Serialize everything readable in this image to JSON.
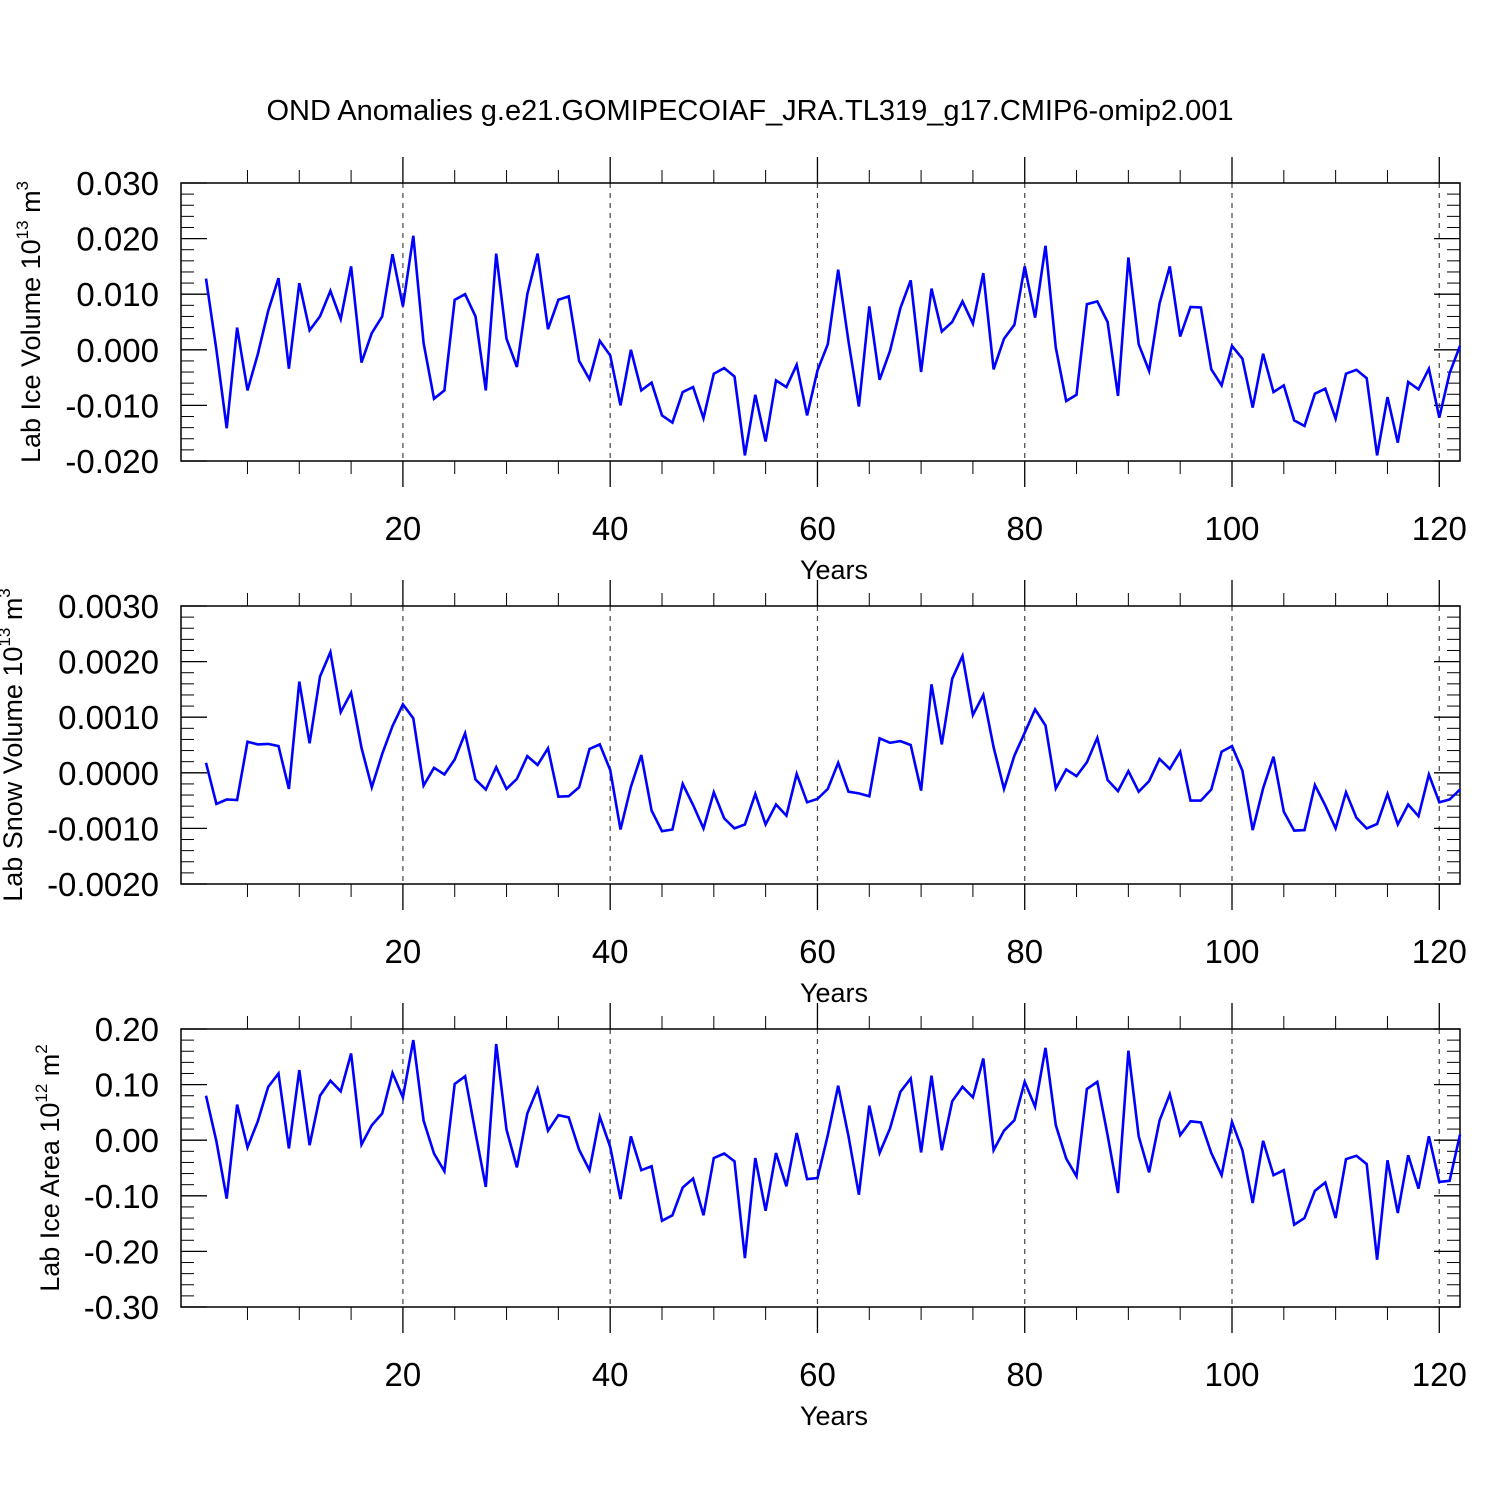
{
  "title": "OND Anomalies g.e21.GOMIPECOIAF_JRA.TL319_g17.CMIP6-omip2.001",
  "colors": {
    "line": "#0000ff",
    "frame": "#000000",
    "grid": "#444444"
  },
  "chart_data": [
    {
      "type": "line",
      "name": "ice-volume",
      "ylabel_main": "Lab Ice Volume 10",
      "ylabel_exp": "13",
      "ylabel_unit": " m",
      "ylabel_unit_exp": "3",
      "xlabel": "Years",
      "xlim": [
        1,
        122
      ],
      "ylim": [
        -0.02,
        0.03
      ],
      "xticks": [
        20,
        40,
        60,
        80,
        100,
        120
      ],
      "xtick_labels": [
        "20",
        "40",
        "60",
        "80",
        "100",
        "120"
      ],
      "yticks": [
        -0.02,
        -0.01,
        0.0,
        0.01,
        0.02,
        0.03
      ],
      "ytick_labels": [
        "-0.020",
        "-0.010",
        "0.000",
        "0.010",
        "0.020",
        "0.030"
      ],
      "grid_x": [
        20,
        40,
        60,
        80,
        100,
        120
      ],
      "values": [
        0.0128,
        0.0,
        -0.0141,
        0.004,
        -0.0073,
        -0.0008,
        0.007,
        0.0129,
        -0.0034,
        0.012,
        0.0035,
        0.006,
        0.0106,
        0.0055,
        0.015,
        -0.0023,
        0.003,
        0.006,
        0.0172,
        0.0078,
        0.0205,
        0.0012,
        -0.0088,
        -0.0073,
        0.009,
        0.01,
        0.006,
        -0.0073,
        0.0173,
        0.002,
        -0.0031,
        0.01,
        0.0173,
        0.0037,
        0.009,
        0.0096,
        -0.002,
        -0.0053,
        0.0016,
        -0.001,
        -0.01,
        0.0,
        -0.0073,
        -0.0059,
        -0.0118,
        -0.0131,
        -0.0076,
        -0.0067,
        -0.0123,
        -0.0043,
        -0.0033,
        -0.0048,
        -0.019,
        -0.0081,
        -0.0165,
        -0.0055,
        -0.0067,
        -0.0027,
        -0.0118,
        -0.0037,
        0.001,
        0.0144,
        0.0015,
        -0.0102,
        0.0078,
        -0.0054,
        -0.0002,
        0.0075,
        0.0125,
        -0.004,
        0.011,
        0.0033,
        0.005,
        0.0087,
        0.0047,
        0.0138,
        -0.0035,
        0.002,
        0.0045,
        0.015,
        0.0058,
        0.0187,
        0.0004,
        -0.0092,
        -0.0081,
        0.0082,
        0.0087,
        0.005,
        -0.0083,
        0.0166,
        0.001,
        -0.0038,
        0.0083,
        0.015,
        0.0024,
        0.0077,
        0.0076,
        -0.0035,
        -0.0064,
        0.0007,
        -0.0016,
        -0.0104,
        -0.0007,
        -0.0076,
        -0.0064,
        -0.0127,
        -0.0137,
        -0.0079,
        -0.007,
        -0.0124,
        -0.0043,
        -0.0036,
        -0.0051,
        -0.019,
        -0.0085,
        -0.0167,
        -0.0058,
        -0.0071,
        -0.0034,
        -0.0122,
        -0.0042,
        0.0007
      ]
    },
    {
      "type": "line",
      "name": "snow-volume",
      "ylabel_main": "Lab Snow Volume 10",
      "ylabel_exp": "13",
      "ylabel_unit": " m",
      "ylabel_unit_exp": "3",
      "xlabel": "Years",
      "xlim": [
        1,
        122
      ],
      "ylim": [
        -0.002,
        0.003
      ],
      "xticks": [
        20,
        40,
        60,
        80,
        100,
        120
      ],
      "xtick_labels": [
        "20",
        "40",
        "60",
        "80",
        "100",
        "120"
      ],
      "yticks": [
        -0.002,
        -0.001,
        0.0,
        0.001,
        0.002,
        0.003
      ],
      "ytick_labels": [
        "-0.0020",
        "-0.0010",
        "0.0000",
        "0.0010",
        "0.0020",
        "0.0030"
      ],
      "grid_x": [
        20,
        40,
        60,
        80,
        100,
        120
      ],
      "values": [
        0.00018,
        -0.00056,
        -0.00048,
        -0.00049,
        0.00056,
        0.00051,
        0.00052,
        0.00048,
        -0.00029,
        0.00164,
        0.00053,
        0.00173,
        0.00217,
        0.00109,
        0.00144,
        0.00045,
        -0.00026,
        0.00034,
        0.00084,
        0.00123,
        0.00098,
        -0.00023,
        9e-05,
        -3e-05,
        0.00024,
        0.00071,
        -0.00012,
        -0.0003,
        0.0001,
        -0.00029,
        -0.00011,
        0.0003,
        0.00014,
        0.00044,
        -0.00043,
        -0.00042,
        -0.00026,
        0.00043,
        0.00051,
        5e-05,
        -0.00102,
        -0.00025,
        0.00032,
        -0.00068,
        -0.00105,
        -0.00102,
        -0.0002,
        -0.00058,
        -0.001,
        -0.00035,
        -0.00082,
        -0.001,
        -0.00093,
        -0.00038,
        -0.00093,
        -0.00057,
        -0.00077,
        -2e-05,
        -0.00053,
        -0.00047,
        -0.00029,
        0.00018,
        -0.00034,
        -0.00037,
        -0.00042,
        0.00062,
        0.00054,
        0.00057,
        0.0005,
        -0.00032,
        0.00159,
        0.00051,
        0.00169,
        0.0021,
        0.00104,
        0.0014,
        0.00046,
        -0.00029,
        0.00031,
        0.00072,
        0.00114,
        0.00085,
        -0.00028,
        6e-05,
        -6e-05,
        0.00019,
        0.00063,
        -0.00013,
        -0.00033,
        3e-05,
        -0.00034,
        -0.00015,
        0.00025,
        7e-05,
        0.00038,
        -0.0005,
        -0.0005,
        -0.0003,
        0.00038,
        0.00048,
        4e-05,
        -0.00103,
        -0.00028,
        0.00029,
        -0.0007,
        -0.00104,
        -0.00103,
        -0.00022,
        -0.00059,
        -0.001,
        -0.00035,
        -0.00081,
        -0.001,
        -0.00092,
        -0.00038,
        -0.00093,
        -0.00057,
        -0.00078,
        -3e-05,
        -0.00053,
        -0.00048,
        -0.0003
      ]
    },
    {
      "type": "line",
      "name": "ice-area",
      "ylabel_main": "Lab Ice Area 10",
      "ylabel_exp": "12",
      "ylabel_unit": " m",
      "ylabel_unit_exp": "2",
      "xlabel": "Years",
      "xlim": [
        1,
        122
      ],
      "ylim": [
        -0.3,
        0.2
      ],
      "xticks": [
        20,
        40,
        60,
        80,
        100,
        120
      ],
      "xtick_labels": [
        "20",
        "40",
        "60",
        "80",
        "100",
        "120"
      ],
      "yticks": [
        -0.3,
        -0.2,
        -0.1,
        0.0,
        0.1,
        0.2
      ],
      "ytick_labels": [
        "-0.30",
        "-0.20",
        "-0.10",
        "0.00",
        "0.10",
        "0.20"
      ],
      "grid_x": [
        20,
        40,
        60,
        80,
        100,
        120
      ],
      "values": [
        0.08,
        -0.002,
        -0.105,
        0.064,
        -0.013,
        0.034,
        0.096,
        0.12,
        -0.015,
        0.126,
        -0.009,
        0.08,
        0.107,
        0.088,
        0.156,
        -0.008,
        0.027,
        0.048,
        0.121,
        0.077,
        0.18,
        0.035,
        -0.024,
        -0.056,
        0.101,
        0.115,
        0.013,
        -0.084,
        0.173,
        0.019,
        -0.049,
        0.048,
        0.093,
        0.017,
        0.045,
        0.041,
        -0.017,
        -0.054,
        0.042,
        -0.012,
        -0.106,
        0.007,
        -0.054,
        -0.047,
        -0.145,
        -0.135,
        -0.085,
        -0.069,
        -0.135,
        -0.032,
        -0.024,
        -0.038,
        -0.212,
        -0.032,
        -0.127,
        -0.023,
        -0.083,
        0.013,
        -0.07,
        -0.068,
        0.009,
        0.098,
        0.007,
        -0.098,
        0.062,
        -0.023,
        0.021,
        0.087,
        0.111,
        -0.022,
        0.116,
        -0.018,
        0.07,
        0.096,
        0.077,
        0.147,
        -0.018,
        0.017,
        0.036,
        0.105,
        0.06,
        0.166,
        0.027,
        -0.033,
        -0.065,
        0.092,
        0.105,
        0.009,
        -0.095,
        0.161,
        0.007,
        -0.058,
        0.035,
        0.083,
        0.009,
        0.034,
        0.032,
        -0.023,
        -0.063,
        0.033,
        -0.018,
        -0.113,
        -0.001,
        -0.063,
        -0.054,
        -0.152,
        -0.14,
        -0.091,
        -0.076,
        -0.14,
        -0.034,
        -0.028,
        -0.043,
        -0.215,
        -0.036,
        -0.131,
        -0.027,
        -0.087,
        0.007,
        -0.075,
        -0.073,
        0.01
      ]
    }
  ]
}
